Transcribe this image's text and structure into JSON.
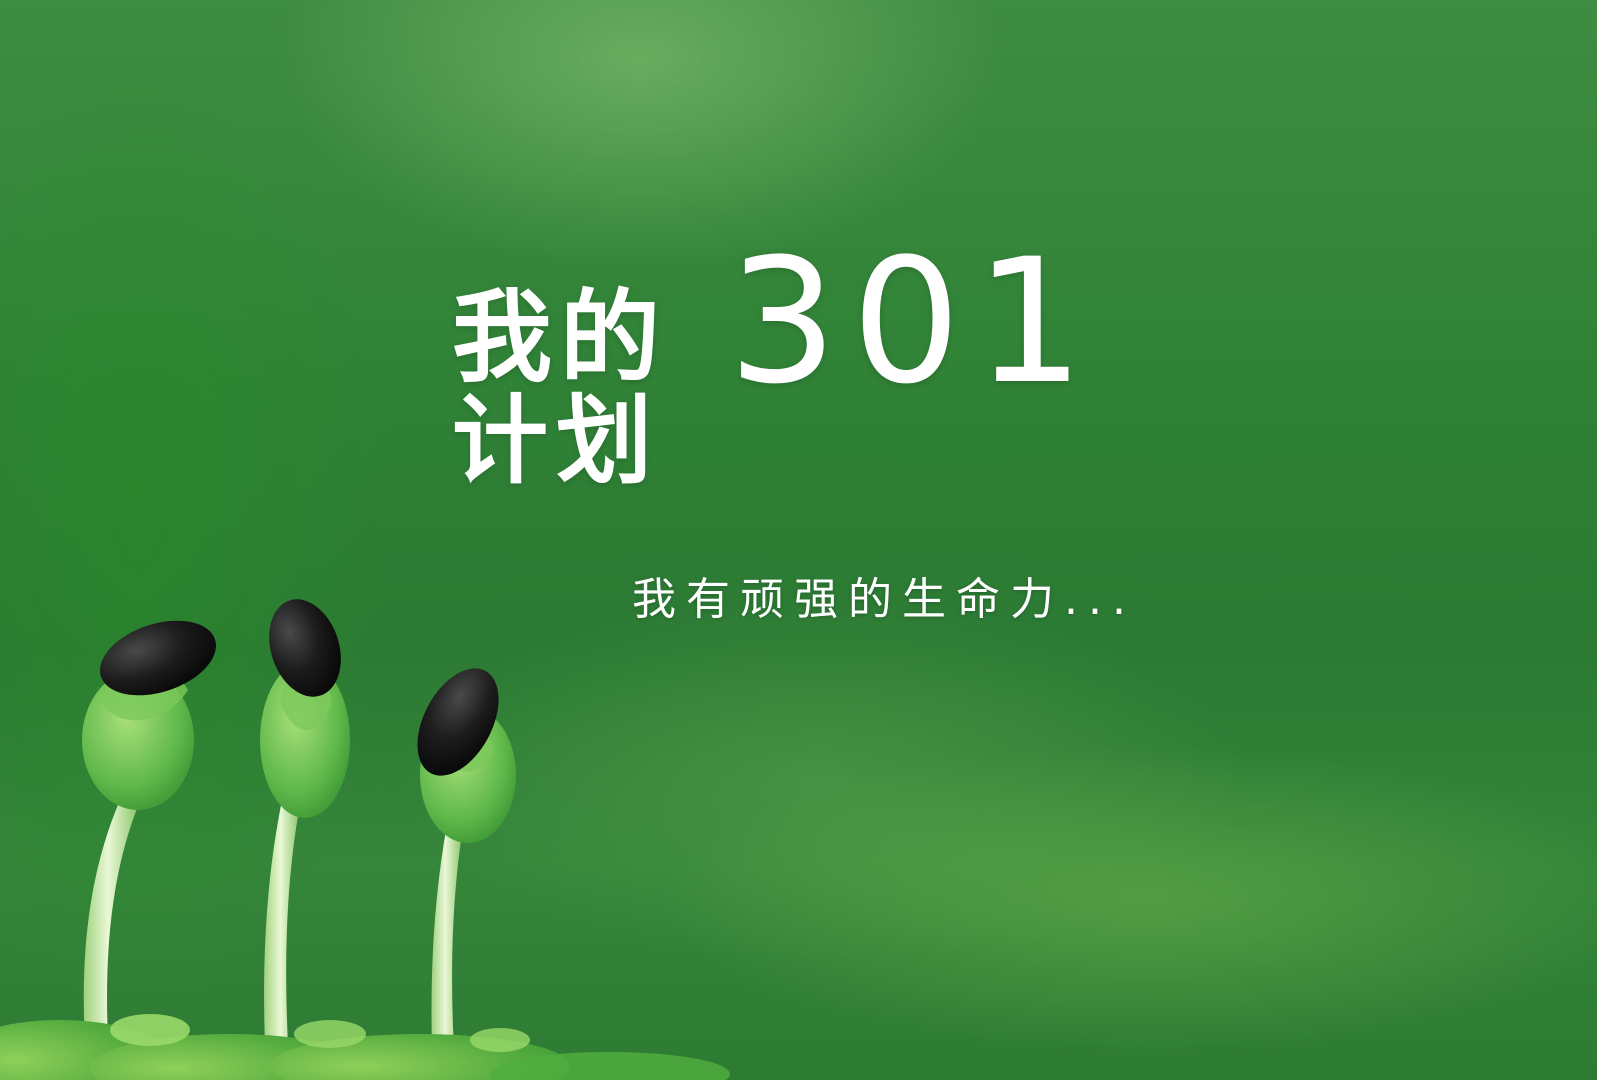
{
  "poster": {
    "title_line1": "我的",
    "title_line2": "计划",
    "number": "301",
    "tagline": "我有顽强的生命力..."
  },
  "colors": {
    "background": "#2f8a3a",
    "text": "#ffffff",
    "stem": "#d7f0b8",
    "leaf": "#5fb84a",
    "seed": "#1a1a1a"
  }
}
